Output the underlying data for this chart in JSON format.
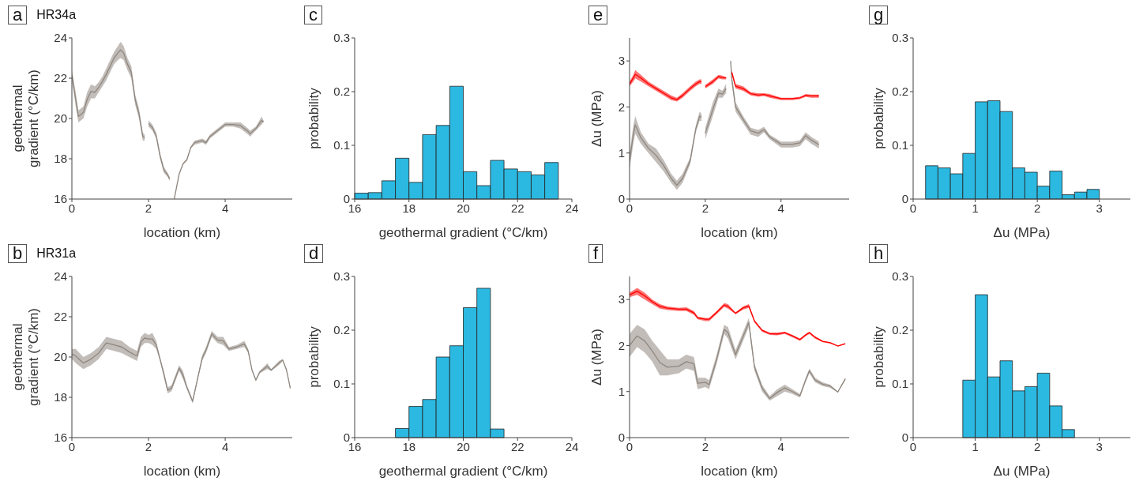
{
  "chart_data": [
    {
      "type": "line",
      "title": "a",
      "subtitle": "HR34a",
      "xlabel": "location (km)",
      "ylabel": "geothermal gradient (°C/km)",
      "xlim": [
        0,
        5.75
      ],
      "xticks": [
        0,
        2,
        4
      ],
      "ylim": [
        16,
        24
      ],
      "yticks": [
        16,
        18,
        20,
        22,
        24
      ],
      "x": [
        0,
        0.1,
        0.17,
        0.3,
        0.4,
        0.5,
        0.6,
        0.7,
        0.8,
        0.9,
        1.0,
        1.1,
        1.2,
        1.27,
        1.35,
        1.45,
        1.55,
        1.65,
        1.75,
        1.85,
        1.9,
        1.95,
        2.0,
        2.1,
        2.2,
        2.3,
        2.4,
        2.5,
        2.55,
        2.6,
        2.67,
        2.8,
        2.9,
        3.0,
        3.1,
        3.2,
        3.4,
        3.5,
        3.6,
        3.8,
        4.0,
        4.2,
        4.4,
        4.6,
        4.65,
        4.8,
        4.95,
        5.0
      ],
      "series": [
        {
          "color": "#8f877f",
          "values": [
            22.15,
            20.95,
            20.1,
            20.3,
            20.95,
            21.35,
            21.3,
            21.55,
            21.85,
            22.2,
            22.6,
            23.0,
            23.25,
            23.4,
            23.25,
            22.7,
            22.3,
            20.95,
            20.25,
            19.1,
            19.05,
            null,
            19.75,
            19.55,
            19.15,
            18.15,
            17.45,
            17.2,
            17.0,
            null,
            16.0,
            17.25,
            17.75,
            17.95,
            18.55,
            18.8,
            18.9,
            18.8,
            19.1,
            19.4,
            19.7,
            19.7,
            19.65,
            19.35,
            19.25,
            19.5,
            19.9,
            19.85
          ],
          "upper": [
            22.4,
            21.3,
            20.4,
            20.6,
            21.3,
            21.7,
            21.6,
            21.8,
            22.1,
            22.5,
            22.9,
            23.3,
            23.6,
            23.8,
            23.6,
            23.0,
            22.6,
            21.2,
            20.5,
            19.3,
            19.2,
            null,
            19.9,
            19.7,
            19.3,
            18.3,
            17.6,
            17.3,
            17.1,
            null,
            16.0,
            17.3,
            17.8,
            18.0,
            18.6,
            18.9,
            19.0,
            18.9,
            19.2,
            19.5,
            19.8,
            19.8,
            19.8,
            19.5,
            19.4,
            19.6,
            20.1,
            19.9
          ],
          "lower": [
            21.9,
            20.6,
            19.8,
            20.0,
            20.6,
            21.0,
            21.0,
            21.3,
            21.6,
            21.9,
            22.3,
            22.7,
            22.9,
            23.0,
            22.9,
            22.4,
            22.0,
            20.7,
            20.0,
            18.9,
            18.9,
            null,
            19.6,
            19.4,
            19.0,
            18.0,
            17.3,
            17.1,
            16.9,
            null,
            16.0,
            17.2,
            17.7,
            17.9,
            18.5,
            18.7,
            18.8,
            18.7,
            19.0,
            19.3,
            19.6,
            19.6,
            19.5,
            19.2,
            19.1,
            19.4,
            19.7,
            19.8
          ]
        }
      ]
    },
    {
      "type": "histogram",
      "title": "c",
      "xlabel": "geothermal gradient (°C/km)",
      "ylabel": "probability",
      "xlim": [
        16,
        24
      ],
      "xticks": [
        16,
        18,
        20,
        22,
        24
      ],
      "ylim": [
        0,
        0.3
      ],
      "yticks": [
        0,
        0.1,
        0.2,
        0.3
      ],
      "color": "#2bb9e1",
      "bins": [
        16,
        16.5,
        17,
        17.5,
        18,
        18.5,
        19,
        19.5,
        20,
        20.5,
        21,
        21.5,
        22,
        22.5,
        23,
        23.5
      ],
      "values": [
        0.011,
        0.012,
        0.034,
        0.076,
        0.031,
        0.12,
        0.137,
        0.21,
        0.051,
        0.025,
        0.072,
        0.056,
        0.051,
        0.045,
        0.068
      ]
    },
    {
      "type": "line",
      "title": "e",
      "xlabel": "location (km)",
      "ylabel": "Δu (MPa)",
      "xlim": [
        0,
        5.8
      ],
      "xticks": [
        0,
        2,
        4
      ],
      "ylim": [
        0,
        3.5
      ],
      "yticks": [
        0,
        1,
        2,
        3
      ],
      "x": [
        0,
        0.1,
        0.15,
        0.3,
        0.5,
        0.7,
        0.9,
        1.1,
        1.25,
        1.4,
        1.6,
        1.75,
        1.85,
        1.9,
        1.95,
        2.0,
        2.2,
        2.35,
        2.45,
        2.55,
        2.6,
        2.67,
        2.7,
        2.8,
        3.0,
        3.2,
        3.4,
        3.55,
        3.7,
        4.0,
        4.3,
        4.5,
        4.65,
        4.8,
        5.0
      ],
      "series": [
        {
          "color": "#8f877f",
          "values": [
            0.83,
            1.4,
            1.61,
            1.33,
            1.1,
            0.95,
            0.73,
            0.45,
            0.3,
            0.45,
            0.83,
            1.53,
            1.8,
            1.78,
            null,
            1.43,
            1.95,
            2.3,
            2.28,
            2.4,
            null,
            3.0,
            2.6,
            2.0,
            1.73,
            1.48,
            1.43,
            1.51,
            1.35,
            1.19,
            1.19,
            1.22,
            1.38,
            1.28,
            1.18
          ],
          "upper": [
            1.0,
            1.6,
            1.8,
            1.45,
            1.2,
            1.1,
            0.85,
            0.55,
            0.4,
            0.55,
            0.9,
            1.6,
            1.9,
            1.85,
            null,
            1.55,
            2.1,
            2.4,
            2.35,
            2.5,
            null,
            3.05,
            2.7,
            2.1,
            1.8,
            1.55,
            1.5,
            1.57,
            1.4,
            1.25,
            1.25,
            1.28,
            1.45,
            1.35,
            1.25
          ],
          "lower": [
            0.65,
            1.2,
            1.42,
            1.2,
            1.0,
            0.8,
            0.6,
            0.35,
            0.2,
            0.35,
            0.75,
            1.45,
            1.7,
            1.7,
            null,
            1.3,
            1.8,
            2.2,
            2.2,
            2.3,
            null,
            2.95,
            2.5,
            1.9,
            1.65,
            1.4,
            1.35,
            1.45,
            1.3,
            1.12,
            1.12,
            1.15,
            1.3,
            1.2,
            1.1
          ]
        },
        {
          "color": "#ff0000",
          "values": [
            2.5,
            2.63,
            2.71,
            2.63,
            2.5,
            2.4,
            2.3,
            2.2,
            2.16,
            2.25,
            2.4,
            2.5,
            2.55,
            2.55,
            null,
            2.44,
            2.55,
            2.66,
            2.64,
            2.63,
            null,
            null,
            2.75,
            2.45,
            2.4,
            2.29,
            2.26,
            2.27,
            2.24,
            2.18,
            2.18,
            2.2,
            2.25,
            2.24,
            2.24
          ],
          "upper": [
            2.55,
            2.7,
            2.8,
            2.7,
            2.55,
            2.45,
            2.35,
            2.25,
            2.2,
            2.3,
            2.45,
            2.55,
            2.6,
            2.6,
            null,
            2.48,
            2.6,
            2.7,
            2.68,
            2.65,
            null,
            null,
            2.8,
            2.5,
            2.45,
            2.32,
            2.3,
            2.3,
            2.28,
            2.2,
            2.2,
            2.22,
            2.28,
            2.27,
            2.27
          ],
          "lower": [
            2.45,
            2.55,
            2.62,
            2.55,
            2.45,
            2.35,
            2.25,
            2.15,
            2.12,
            2.2,
            2.35,
            2.45,
            2.5,
            2.5,
            null,
            2.4,
            2.5,
            2.62,
            2.6,
            2.6,
            null,
            null,
            2.7,
            2.4,
            2.35,
            2.25,
            2.22,
            2.24,
            2.2,
            2.15,
            2.15,
            2.17,
            2.22,
            2.2,
            2.2
          ]
        }
      ]
    },
    {
      "type": "histogram",
      "title": "g",
      "xlabel": "Δu (MPa)",
      "ylabel": "probability",
      "xlim": [
        0,
        3.5
      ],
      "xticks": [
        0,
        1,
        2,
        3
      ],
      "ylim": [
        0,
        0.3
      ],
      "yticks": [
        0,
        0.1,
        0.2,
        0.3
      ],
      "color": "#2bb9e1",
      "bins": [
        0.2,
        0.4,
        0.6,
        0.8,
        1.0,
        1.2,
        1.4,
        1.6,
        1.8,
        2.0,
        2.2,
        2.4,
        2.6,
        2.8,
        3.0
      ],
      "values": [
        0.062,
        0.058,
        0.047,
        0.085,
        0.181,
        0.183,
        0.163,
        0.058,
        0.05,
        0.024,
        0.052,
        0.008,
        0.013,
        0.018
      ]
    },
    {
      "type": "line",
      "title": "b",
      "subtitle": "HR31a",
      "xlabel": "location (km)",
      "ylabel": "geothermal gradient (°C/km)",
      "xlim": [
        0,
        5.75
      ],
      "xticks": [
        0,
        2,
        4
      ],
      "ylim": [
        16,
        24
      ],
      "yticks": [
        16,
        18,
        20,
        22,
        24
      ],
      "x": [
        0,
        0.1,
        0.3,
        0.5,
        0.7,
        0.9,
        1.1,
        1.3,
        1.5,
        1.7,
        1.8,
        1.9,
        2.0,
        2.1,
        2.2,
        2.3,
        2.4,
        2.5,
        2.6,
        2.8,
        2.9,
        3.0,
        3.15,
        3.3,
        3.4,
        3.5,
        3.65,
        3.8,
        3.95,
        4.1,
        4.3,
        4.5,
        4.6,
        4.7,
        4.8,
        4.9,
        5.1,
        5.2,
        5.4,
        5.5,
        5.6,
        5.7
      ],
      "series": [
        {
          "color": "#8f877f",
          "values": [
            20.15,
            20.05,
            19.7,
            19.9,
            20.2,
            20.7,
            20.6,
            20.5,
            20.25,
            20.05,
            20.75,
            20.95,
            20.9,
            20.9,
            20.6,
            19.9,
            19.15,
            18.35,
            18.45,
            19.45,
            19.1,
            18.5,
            17.8,
            19.1,
            19.95,
            20.35,
            21.15,
            20.85,
            20.8,
            20.4,
            20.5,
            20.65,
            20.3,
            19.35,
            18.85,
            19.25,
            19.55,
            19.35,
            19.7,
            19.85,
            19.35,
            18.45
          ],
          "upper": [
            20.4,
            20.4,
            20.0,
            20.2,
            20.5,
            21.0,
            20.9,
            20.8,
            20.5,
            20.3,
            21.0,
            21.2,
            21.1,
            21.2,
            20.8,
            20.0,
            19.3,
            18.5,
            18.6,
            19.6,
            19.3,
            18.6,
            17.9,
            19.2,
            20.1,
            20.5,
            21.3,
            21.0,
            21.0,
            20.5,
            20.6,
            20.8,
            20.4,
            19.4,
            18.9,
            19.3,
            19.7,
            19.4,
            19.8,
            19.9,
            19.4,
            18.5
          ],
          "lower": [
            19.9,
            19.7,
            19.4,
            19.6,
            19.9,
            20.4,
            20.3,
            20.2,
            20.0,
            19.8,
            20.5,
            20.7,
            20.7,
            20.6,
            20.4,
            19.8,
            19.0,
            18.2,
            18.3,
            19.3,
            18.9,
            18.4,
            17.7,
            19.0,
            19.8,
            20.2,
            21.0,
            20.7,
            20.6,
            20.3,
            20.4,
            20.5,
            20.2,
            19.3,
            18.8,
            19.2,
            19.4,
            19.3,
            19.6,
            19.8,
            19.3,
            18.4
          ]
        }
      ]
    },
    {
      "type": "histogram",
      "title": "d",
      "xlabel": "geothermal gradient (°C/km)",
      "ylabel": "probability",
      "xlim": [
        16,
        24
      ],
      "xticks": [
        16,
        18,
        20,
        22,
        24
      ],
      "ylim": [
        0,
        0.3
      ],
      "yticks": [
        0,
        0.1,
        0.2,
        0.3
      ],
      "color": "#2bb9e1",
      "bins": [
        17.5,
        18,
        18.5,
        19,
        19.5,
        20,
        20.5,
        21,
        21.5
      ],
      "values": [
        0.017,
        0.058,
        0.071,
        0.15,
        0.171,
        0.242,
        0.278,
        0.016
      ]
    },
    {
      "type": "line",
      "title": "f",
      "xlabel": "location (km)",
      "ylabel": "Δu (MPa)",
      "xlim": [
        0,
        5.8
      ],
      "xticks": [
        0,
        2,
        4
      ],
      "ylim": [
        0,
        3.5
      ],
      "yticks": [
        0,
        1,
        2,
        3
      ],
      "x": [
        0,
        0.2,
        0.4,
        0.6,
        0.8,
        1.0,
        1.3,
        1.5,
        1.7,
        1.8,
        2.0,
        2.1,
        2.3,
        2.5,
        2.6,
        2.8,
        3.0,
        3.15,
        3.3,
        3.5,
        3.7,
        3.9,
        4.1,
        4.3,
        4.5,
        4.65,
        4.75,
        4.9,
        5.1,
        5.3,
        5.5,
        5.7
      ],
      "series": [
        {
          "color": "#8f877f",
          "values": [
            2.0,
            2.21,
            2.1,
            1.88,
            1.63,
            1.53,
            1.55,
            1.65,
            1.6,
            1.18,
            1.2,
            1.15,
            1.7,
            2.35,
            2.28,
            1.8,
            2.2,
            2.5,
            1.53,
            1.08,
            0.85,
            0.98,
            1.08,
            1.0,
            0.91,
            1.25,
            1.45,
            1.25,
            1.16,
            1.12,
            0.99,
            1.28
          ],
          "upper": [
            2.25,
            2.45,
            2.35,
            2.1,
            1.9,
            1.7,
            1.7,
            1.8,
            1.75,
            1.3,
            1.3,
            1.25,
            1.8,
            2.45,
            2.4,
            1.9,
            2.3,
            2.6,
            1.6,
            1.15,
            0.9,
            1.05,
            1.15,
            1.05,
            0.95,
            1.3,
            1.5,
            1.3,
            1.2,
            1.15,
            1.0,
            1.3
          ],
          "lower": [
            1.75,
            1.97,
            1.85,
            1.65,
            1.35,
            1.35,
            1.4,
            1.5,
            1.45,
            1.05,
            1.1,
            1.05,
            1.6,
            2.25,
            2.15,
            1.7,
            2.1,
            2.4,
            1.45,
            1.0,
            0.8,
            0.9,
            1.0,
            0.95,
            0.87,
            1.2,
            1.4,
            1.2,
            1.12,
            1.08,
            0.98,
            1.25
          ]
        },
        {
          "color": "#ff0000",
          "values": [
            3.1,
            3.18,
            3.08,
            2.95,
            2.85,
            2.81,
            2.79,
            2.79,
            2.71,
            2.6,
            2.57,
            2.57,
            2.72,
            2.88,
            2.85,
            2.7,
            2.82,
            2.86,
            2.53,
            2.33,
            2.26,
            2.25,
            2.28,
            2.21,
            2.13,
            2.23,
            2.28,
            2.18,
            2.09,
            2.06,
            1.99,
            2.04
          ],
          "upper": [
            3.15,
            3.25,
            3.15,
            3.0,
            2.9,
            2.85,
            2.82,
            2.83,
            2.75,
            2.63,
            2.6,
            2.6,
            2.75,
            2.92,
            2.9,
            2.72,
            2.85,
            2.9,
            2.55,
            2.35,
            2.28,
            2.28,
            2.3,
            2.23,
            2.15,
            2.25,
            2.3,
            2.2,
            2.1,
            2.07,
            2.0,
            2.05
          ],
          "lower": [
            3.05,
            3.1,
            3.0,
            2.9,
            2.8,
            2.77,
            2.75,
            2.75,
            2.67,
            2.57,
            2.53,
            2.53,
            2.68,
            2.84,
            2.8,
            2.68,
            2.78,
            2.82,
            2.5,
            2.3,
            2.23,
            2.22,
            2.25,
            2.18,
            2.1,
            2.2,
            2.25,
            2.15,
            2.07,
            2.04,
            1.98,
            2.03
          ]
        }
      ]
    },
    {
      "type": "histogram",
      "title": "h",
      "xlabel": "Δu (MPa)",
      "ylabel": "probability",
      "xlim": [
        0,
        3.5
      ],
      "xticks": [
        0,
        1,
        2,
        3
      ],
      "ylim": [
        0,
        0.3
      ],
      "yticks": [
        0,
        0.1,
        0.2,
        0.3
      ],
      "color": "#2bb9e1",
      "bins": [
        0.8,
        1.0,
        1.2,
        1.4,
        1.6,
        1.8,
        2.0,
        2.2,
        2.4,
        2.6
      ],
      "values": [
        0.107,
        0.266,
        0.113,
        0.143,
        0.087,
        0.095,
        0.12,
        0.059,
        0.015
      ]
    }
  ]
}
